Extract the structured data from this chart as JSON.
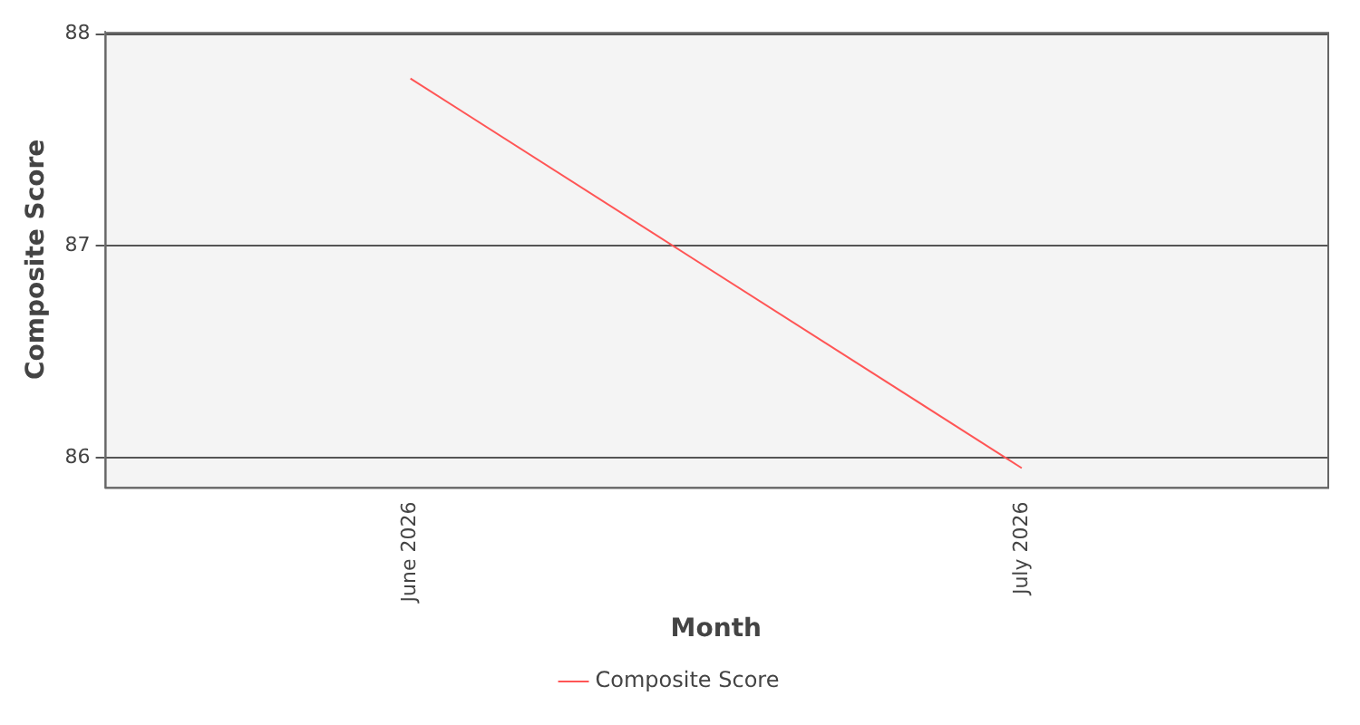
{
  "chart_data": {
    "type": "line",
    "xlabel": "Month",
    "ylabel": "Composite Score",
    "categories": [
      "June 2026",
      "July 2026"
    ],
    "series": [
      {
        "name": "Composite Score",
        "color": "#ff5555",
        "values": [
          87.79,
          85.95
        ]
      }
    ],
    "ylim": [
      85.86,
      88.01
    ],
    "yticks": [
      86,
      87,
      88
    ],
    "grid": "y",
    "legend": "bottom",
    "marker": "none",
    "line_style": "solid"
  }
}
